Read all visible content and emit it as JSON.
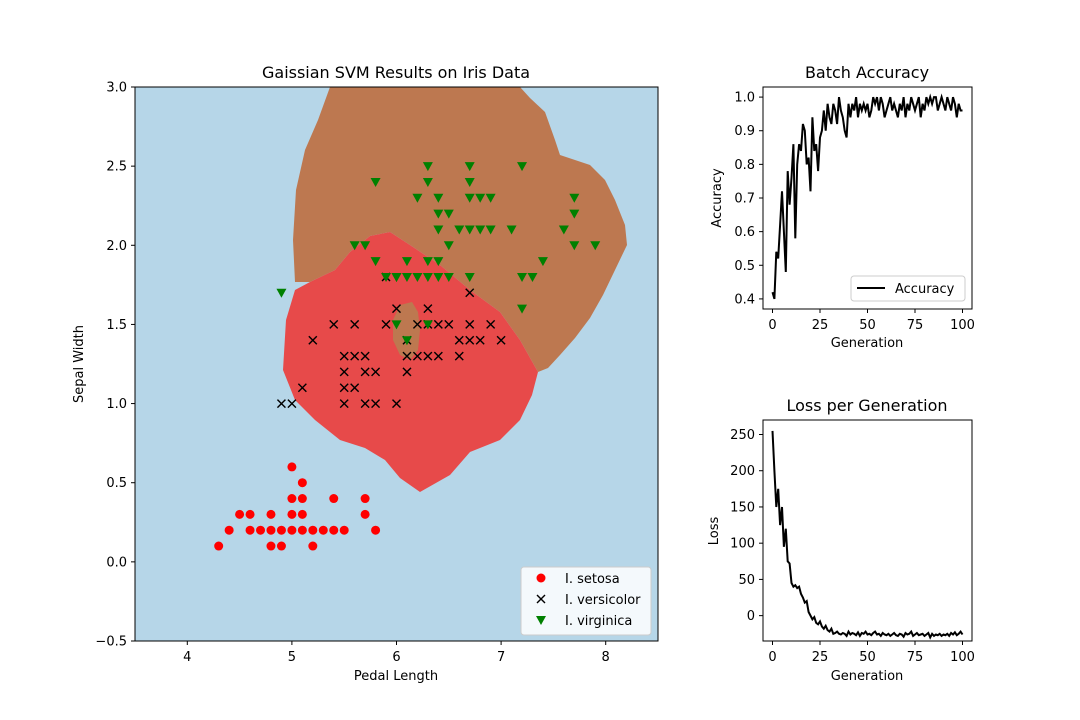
{
  "chart_data": [
    {
      "type": "scatter",
      "title": "Gaissian SVM Results on Iris Data",
      "xlabel": "Pedal Length",
      "ylabel": "Sepal Width",
      "xlim": [
        3.5,
        8.5
      ],
      "ylim": [
        -0.5,
        3.0
      ],
      "xticks": [
        "4",
        "5",
        "6",
        "7",
        "8"
      ],
      "yticks": [
        "−0.5",
        "0.0",
        "0.5",
        "1.0",
        "1.5",
        "2.0",
        "2.5",
        "3.0"
      ],
      "legend_position": "bottom-right",
      "background_color": "#b6d6e8",
      "region_colors": {
        "versicolor": "#e74a4a",
        "virginica": "#bd7850"
      },
      "series": [
        {
          "name": "I. setosa",
          "marker": "circle",
          "color": "#ff0000",
          "points": [
            [
              4.3,
              0.1
            ],
            [
              4.4,
              0.2
            ],
            [
              4.5,
              0.3
            ],
            [
              4.6,
              0.2
            ],
            [
              4.6,
              0.3
            ],
            [
              4.7,
              0.2
            ],
            [
              4.8,
              0.1
            ],
            [
              4.8,
              0.2
            ],
            [
              4.8,
              0.3
            ],
            [
              4.9,
              0.1
            ],
            [
              4.9,
              0.2
            ],
            [
              5.0,
              0.2
            ],
            [
              5.0,
              0.3
            ],
            [
              5.0,
              0.4
            ],
            [
              5.0,
              0.6
            ],
            [
              5.1,
              0.2
            ],
            [
              5.1,
              0.3
            ],
            [
              5.1,
              0.4
            ],
            [
              5.1,
              0.5
            ],
            [
              5.2,
              0.1
            ],
            [
              5.2,
              0.2
            ],
            [
              5.3,
              0.2
            ],
            [
              5.4,
              0.2
            ],
            [
              5.4,
              0.4
            ],
            [
              5.5,
              0.2
            ],
            [
              5.7,
              0.3
            ],
            [
              5.7,
              0.4
            ],
            [
              5.8,
              0.2
            ]
          ]
        },
        {
          "name": "I. versicolor",
          "marker": "x",
          "color": "#000000",
          "points": [
            [
              4.9,
              1.0
            ],
            [
              5.0,
              1.0
            ],
            [
              5.1,
              1.1
            ],
            [
              5.2,
              1.4
            ],
            [
              5.4,
              1.5
            ],
            [
              5.5,
              1.0
            ],
            [
              5.5,
              1.1
            ],
            [
              5.5,
              1.2
            ],
            [
              5.5,
              1.3
            ],
            [
              5.6,
              1.1
            ],
            [
              5.6,
              1.3
            ],
            [
              5.6,
              1.5
            ],
            [
              5.7,
              1.0
            ],
            [
              5.7,
              1.2
            ],
            [
              5.7,
              1.3
            ],
            [
              5.8,
              1.0
            ],
            [
              5.8,
              1.2
            ],
            [
              5.9,
              1.5
            ],
            [
              5.9,
              1.8
            ],
            [
              6.0,
              1.0
            ],
            [
              6.0,
              1.6
            ],
            [
              6.1,
              1.2
            ],
            [
              6.1,
              1.3
            ],
            [
              6.1,
              1.4
            ],
            [
              6.2,
              1.3
            ],
            [
              6.2,
              1.5
            ],
            [
              6.3,
              1.3
            ],
            [
              6.3,
              1.5
            ],
            [
              6.3,
              1.6
            ],
            [
              6.4,
              1.3
            ],
            [
              6.4,
              1.5
            ],
            [
              6.5,
              1.5
            ],
            [
              6.6,
              1.3
            ],
            [
              6.6,
              1.4
            ],
            [
              6.7,
              1.4
            ],
            [
              6.7,
              1.5
            ],
            [
              6.7,
              1.7
            ],
            [
              6.8,
              1.4
            ],
            [
              6.9,
              1.5
            ],
            [
              7.0,
              1.4
            ]
          ]
        },
        {
          "name": "I. virginica",
          "marker": "triangle-down",
          "color": "#008000",
          "points": [
            [
              4.9,
              1.7
            ],
            [
              5.6,
              2.0
            ],
            [
              5.7,
              2.0
            ],
            [
              5.8,
              1.9
            ],
            [
              5.8,
              2.4
            ],
            [
              5.9,
              1.8
            ],
            [
              6.0,
              1.5
            ],
            [
              6.0,
              1.8
            ],
            [
              6.1,
              1.4
            ],
            [
              6.1,
              1.8
            ],
            [
              6.1,
              1.9
            ],
            [
              6.2,
              1.8
            ],
            [
              6.3,
              1.5
            ],
            [
              6.3,
              1.8
            ],
            [
              6.3,
              1.9
            ],
            [
              6.3,
              2.4
            ],
            [
              6.3,
              2.5
            ],
            [
              6.4,
              1.8
            ],
            [
              6.4,
              1.9
            ],
            [
              6.4,
              2.1
            ],
            [
              6.4,
              2.2
            ],
            [
              6.4,
              2.3
            ],
            [
              6.5,
              1.8
            ],
            [
              6.5,
              2.0
            ],
            [
              6.5,
              2.2
            ],
            [
              6.6,
              2.1
            ],
            [
              6.7,
              1.8
            ],
            [
              6.7,
              2.1
            ],
            [
              6.7,
              2.3
            ],
            [
              6.7,
              2.4
            ],
            [
              6.7,
              2.5
            ],
            [
              6.8,
              2.1
            ],
            [
              6.8,
              2.3
            ],
            [
              6.9,
              2.1
            ],
            [
              6.9,
              2.3
            ],
            [
              7.1,
              2.1
            ],
            [
              7.2,
              1.6
            ],
            [
              7.2,
              1.8
            ],
            [
              7.2,
              2.5
            ],
            [
              7.3,
              1.8
            ],
            [
              7.4,
              1.9
            ],
            [
              7.6,
              2.1
            ],
            [
              7.7,
              2.0
            ],
            [
              7.7,
              2.2
            ],
            [
              7.7,
              2.3
            ],
            [
              7.9,
              2.0
            ],
            [
              6.2,
              2.3
            ],
            [
              6.0,
              1.8
            ]
          ]
        }
      ]
    },
    {
      "type": "line",
      "title": "Batch Accuracy",
      "xlabel": "Generation",
      "ylabel": "Accuracy",
      "xlim": [
        -5,
        105
      ],
      "ylim": [
        0.37,
        1.03
      ],
      "xticks": [
        "0",
        "25",
        "50",
        "75",
        "100"
      ],
      "yticks": [
        "0.4",
        "0.5",
        "0.6",
        "0.7",
        "0.8",
        "0.9",
        "1.0"
      ],
      "legend_position": "bottom-right",
      "series": [
        {
          "name": "Accuracy",
          "color": "#000000",
          "values": [
            0.42,
            0.4,
            0.54,
            0.52,
            0.62,
            0.72,
            0.6,
            0.48,
            0.78,
            0.68,
            0.76,
            0.86,
            0.58,
            0.8,
            0.86,
            0.84,
            0.92,
            0.9,
            0.8,
            0.82,
            0.72,
            0.94,
            0.84,
            0.86,
            0.78,
            0.88,
            0.9,
            0.96,
            0.9,
            0.98,
            0.94,
            0.92,
            0.98,
            0.96,
            0.92,
            1.0,
            0.96,
            0.94,
            0.9,
            0.88,
            0.98,
            0.94,
            0.98,
            0.96,
            1.0,
            0.94,
            0.98,
            0.96,
            0.98,
            0.96,
            0.98,
            0.94,
            0.96,
            1.0,
            0.98,
            1.0,
            0.96,
            1.0,
            0.98,
            0.94,
            0.96,
            0.98,
            1.0,
            0.96,
            0.98,
            0.96,
            0.94,
            0.98,
            0.96,
            1.0,
            0.94,
            0.98,
            0.96,
            1.0,
            0.98,
            0.96,
            0.98,
            1.0,
            0.94,
            0.98,
            0.96,
            1.0,
            0.98,
            1.0,
            0.98,
            1.0,
            1.0,
            0.96,
            0.98,
            1.0,
            0.98,
            0.96,
            1.0,
            0.98,
            0.96,
            1.0,
            0.98,
            0.94,
            0.98,
            0.96,
            0.96
          ]
        }
      ]
    },
    {
      "type": "line",
      "title": "Loss per Generation",
      "xlabel": "Generation",
      "ylabel": "Loss",
      "xlim": [
        -5,
        105
      ],
      "ylim": [
        -35,
        270
      ],
      "xticks": [
        "0",
        "25",
        "50",
        "75",
        "100"
      ],
      "yticks": [
        "0",
        "50",
        "100",
        "150",
        "200",
        "250"
      ],
      "series": [
        {
          "color": "#000000",
          "values": [
            255,
            200,
            150,
            175,
            125,
            150,
            95,
            120,
            75,
            72,
            45,
            40,
            42,
            38,
            40,
            30,
            25,
            18,
            20,
            5,
            0,
            -5,
            -2,
            -10,
            -12,
            -8,
            -15,
            -18,
            -14,
            -20,
            -22,
            -18,
            -25,
            -24,
            -22,
            -25,
            -26,
            -24,
            -25,
            -28,
            -22,
            -26,
            -24,
            -25,
            -27,
            -23,
            -28,
            -24,
            -25,
            -22,
            -26,
            -25,
            -27,
            -24,
            -22,
            -26,
            -25,
            -28,
            -24,
            -26,
            -27,
            -25,
            -28,
            -26,
            -24,
            -27,
            -28,
            -25,
            -26,
            -29,
            -24,
            -26,
            -25,
            -22,
            -28,
            -26,
            -24,
            -27,
            -26,
            -25,
            -28,
            -26,
            -24,
            -30,
            -25,
            -28,
            -26,
            -27,
            -25,
            -28,
            -26,
            -27,
            -25,
            -28,
            -24,
            -26,
            -23,
            -27,
            -25,
            -22,
            -26
          ]
        }
      ]
    }
  ]
}
